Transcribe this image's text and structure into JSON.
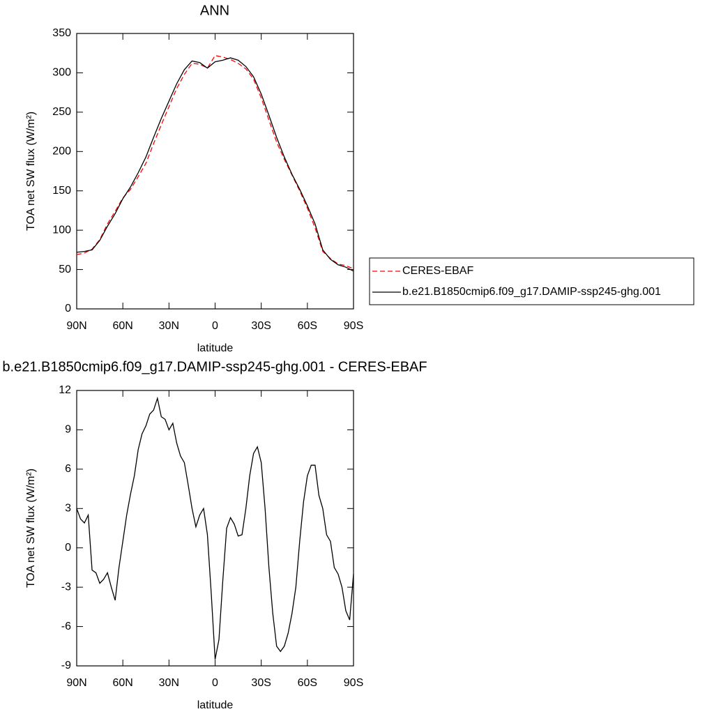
{
  "chart_data": [
    {
      "type": "line",
      "title": "ANN",
      "x_label": "latitude",
      "y_label": "TOA net SW flux (W/m²)",
      "xlim": [
        90,
        -90
      ],
      "xticks": [
        {
          "value": 90,
          "label": "90N"
        },
        {
          "value": 60,
          "label": "60N"
        },
        {
          "value": 30,
          "label": "30N"
        },
        0,
        {
          "value": -30,
          "label": "30S"
        },
        {
          "value": -60,
          "label": "60S"
        },
        {
          "value": -90,
          "label": "90S"
        }
      ],
      "ylim": [
        0,
        350
      ],
      "yticks": [
        0,
        50,
        100,
        150,
        200,
        250,
        300,
        350
      ],
      "legend": "outside-right",
      "x": [
        90,
        85,
        80,
        75,
        70,
        65,
        60,
        55,
        50,
        45,
        40,
        35,
        30,
        25,
        20,
        15,
        10,
        5,
        0,
        -5,
        -10,
        -15,
        -20,
        -25,
        -30,
        -35,
        -40,
        -45,
        -50,
        -55,
        -60,
        -65,
        -70,
        -75,
        -80,
        -85,
        -90
      ],
      "series": [
        {
          "name": "CERES-EBAF",
          "color": "#ff0000",
          "dash": "dashed",
          "values": [
            69,
            71,
            76,
            88,
            108,
            124,
            141,
            152,
            168,
            185,
            210,
            234,
            257,
            280,
            298,
            312,
            311,
            306,
            322,
            320,
            317,
            312,
            305,
            292,
            268,
            240,
            212,
            190,
            170,
            150,
            128,
            103,
            73,
            64,
            57,
            55,
            51
          ]
        },
        {
          "name": "b.e21.B1850cmip6.f09_g17.DAMIP-ssp245-ghg.001",
          "color": "#000000",
          "dash": "solid",
          "values": [
            72,
            73,
            75,
            87,
            105,
            121,
            140,
            155,
            173,
            193,
            218,
            242,
            264,
            286,
            304,
            315,
            313,
            306,
            314,
            316,
            319,
            316,
            308,
            295,
            273,
            246,
            218,
            193,
            171,
            152,
            131,
            108,
            75,
            63,
            56,
            53,
            48
          ]
        }
      ]
    },
    {
      "type": "line",
      "title": "b.e21.B1850cmip6.f09_g17.DAMIP-ssp245-ghg.001 - CERES-EBAF",
      "x_label": "latitude",
      "y_label": "TOA net SW flux (W/m²)",
      "xlim": [
        90,
        -90
      ],
      "xticks": [
        {
          "value": 90,
          "label": "90N"
        },
        {
          "value": 60,
          "label": "60N"
        },
        {
          "value": 30,
          "label": "30N"
        },
        0,
        {
          "value": -30,
          "label": "30S"
        },
        {
          "value": -60,
          "label": "60S"
        },
        {
          "value": -90,
          "label": "90S"
        }
      ],
      "ylim": [
        -9,
        12
      ],
      "yticks": [
        -9,
        -6,
        -3,
        0,
        3,
        6,
        9,
        12
      ],
      "x": [
        90,
        87.5,
        85,
        82.5,
        80,
        77.5,
        75,
        72.5,
        70,
        67.5,
        65,
        62.5,
        60,
        57.5,
        55,
        52.5,
        50,
        47.5,
        45,
        42.5,
        40,
        37.5,
        35,
        32.5,
        30,
        27.5,
        25,
        22.5,
        20,
        17.5,
        15,
        12.5,
        10,
        7.5,
        5,
        2.5,
        0,
        -2.5,
        -5,
        -7.5,
        -10,
        -12.5,
        -15,
        -17.5,
        -20,
        -22.5,
        -25,
        -27.5,
        -30,
        -32.5,
        -35,
        -37.5,
        -40,
        -42.5,
        -45,
        -47.5,
        -50,
        -52.5,
        -55,
        -57.5,
        -60,
        -62.5,
        -65,
        -67.5,
        -70,
        -72.5,
        -75,
        -77.5,
        -80,
        -82.5,
        -85,
        -87.5,
        -90
      ],
      "series": [
        {
          "color": "#000000",
          "dash": "solid",
          "values": [
            3.0,
            2.2,
            1.9,
            2.5,
            -1.7,
            -1.9,
            -2.7,
            -2.4,
            -1.9,
            -3.0,
            -4.0,
            -1.5,
            0.5,
            2.5,
            4.1,
            5.5,
            7.5,
            8.7,
            9.3,
            10.2,
            10.5,
            11.4,
            10.0,
            9.8,
            9.0,
            9.5,
            8.0,
            7.0,
            6.5,
            4.8,
            3.0,
            1.6,
            2.5,
            3.0,
            1.0,
            -3.5,
            -8.5,
            -7.0,
            -2.5,
            1.5,
            2.3,
            1.8,
            0.9,
            1.0,
            3.0,
            5.5,
            7.2,
            7.7,
            6.5,
            3.0,
            -1.5,
            -5.0,
            -7.5,
            -7.9,
            -7.5,
            -6.5,
            -5.0,
            -3.0,
            0.5,
            3.5,
            5.5,
            6.3,
            6.3,
            4.0,
            3.0,
            1.0,
            0.5,
            -1.5,
            -2.0,
            -3.0,
            -4.8,
            -5.5,
            -2.0
          ]
        }
      ]
    }
  ]
}
